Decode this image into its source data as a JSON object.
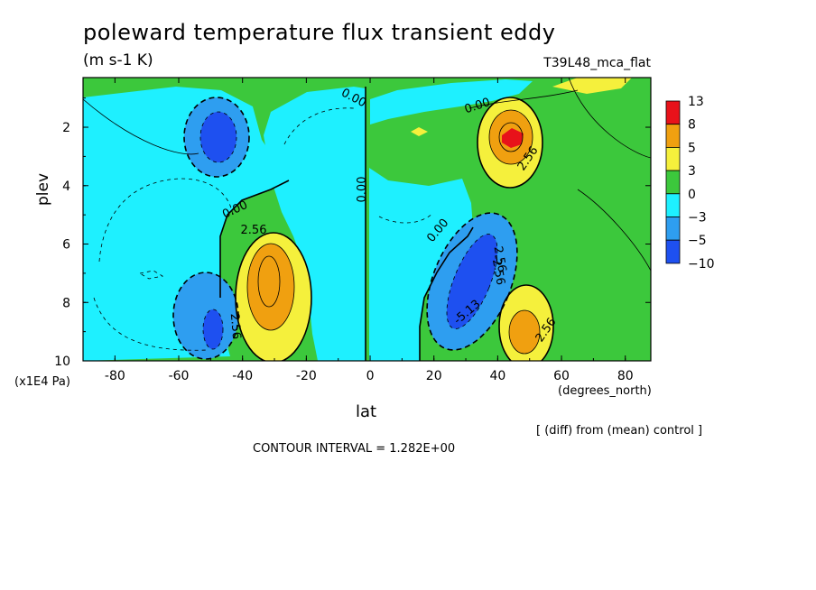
{
  "chart_data": {
    "type": "heatmap",
    "title": "poleward temperature flux transient eddy",
    "subtitle": "(m s-1 K)",
    "experiment": "T39L48_mca_flat",
    "xlabel": "lat",
    "xunit": "(degrees_north)",
    "ylabel": "plev",
    "yunit": "(x1E4 Pa)",
    "note": "[ (diff) from (mean) control ]",
    "contour_interval": "CONTOUR INTERVAL = 1.282E+00",
    "xlim": [
      -90,
      88
    ],
    "ylim": [
      0.3,
      10
    ],
    "y_inverted": true,
    "xticks": [
      "-80",
      "-60",
      "-40",
      "-20",
      "0",
      "20",
      "40",
      "60",
      "80"
    ],
    "yticks": [
      "2",
      "4",
      "6",
      "8",
      "10"
    ],
    "colorbar": {
      "labels": [
        "13",
        "8",
        "5",
        "3",
        "0",
        "−3",
        "−5",
        "−10"
      ],
      "colors": [
        "#e8121a",
        "#f0a010",
        "#f5f03c",
        "#3cc83c",
        "#1ef0ff",
        "#2e9ef0",
        "#1e50f0"
      ]
    },
    "contour_labels": [
      "0.00",
      "0.00",
      "0.00",
      "0.00",
      "0.00",
      "2.56",
      "2.56",
      "2.56",
      "2.56",
      "2.56",
      "-2.56",
      "-5.13"
    ],
    "features": [
      {
        "lat": -48,
        "plev": 2.2,
        "value": -5.5
      },
      {
        "lat": -33,
        "plev": 7.7,
        "value": 6.5
      },
      {
        "lat": -49,
        "plev": 9.0,
        "value": -6.0
      },
      {
        "lat": 33,
        "plev": 7.7,
        "value": -6.5
      },
      {
        "lat": 45,
        "plev": 2.2,
        "value": 9.0
      },
      {
        "lat": 48,
        "plev": 9.0,
        "value": 6.0
      },
      {
        "lat": -10,
        "plev": 6.0,
        "value": -1.5
      },
      {
        "lat": 65,
        "plev": 0.4,
        "value": 3.5
      }
    ]
  }
}
